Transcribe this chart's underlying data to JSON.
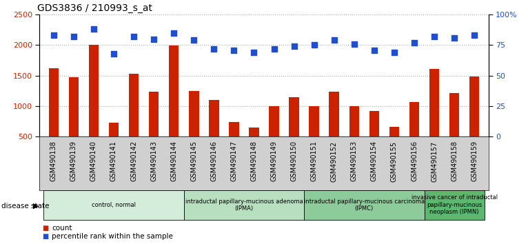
{
  "title": "GDS3836 / 210993_s_at",
  "samples": [
    "GSM490138",
    "GSM490139",
    "GSM490140",
    "GSM490141",
    "GSM490142",
    "GSM490143",
    "GSM490144",
    "GSM490145",
    "GSM490146",
    "GSM490147",
    "GSM490148",
    "GSM490149",
    "GSM490150",
    "GSM490151",
    "GSM490152",
    "GSM490153",
    "GSM490154",
    "GSM490155",
    "GSM490156",
    "GSM490157",
    "GSM490158",
    "GSM490159"
  ],
  "counts": [
    1620,
    1470,
    2000,
    730,
    1530,
    1240,
    1990,
    1250,
    1100,
    740,
    650,
    1000,
    1150,
    1000,
    1240,
    1000,
    920,
    660,
    1070,
    1610,
    1210,
    1490
  ],
  "percentiles": [
    83,
    82,
    88,
    68,
    82,
    80,
    85,
    79,
    72,
    71,
    69,
    72,
    74,
    75,
    79,
    76,
    71,
    69,
    77,
    82,
    81,
    83
  ],
  "ylim_left": [
    500,
    2500
  ],
  "ylim_right": [
    0,
    100
  ],
  "yticks_left": [
    500,
    1000,
    1500,
    2000,
    2500
  ],
  "yticks_right": [
    0,
    25,
    50,
    75,
    100
  ],
  "ytick_labels_right": [
    "0",
    "25",
    "50",
    "75",
    "100%"
  ],
  "bar_color": "#cc2200",
  "dot_color": "#1f4fcf",
  "bar_width": 0.5,
  "dot_size": 28,
  "dot_marker": "s",
  "grid_color": "#aaaaaa",
  "grid_style": "dotted",
  "bg_color": "#ffffff",
  "xtick_bg_color": "#d0d0d0",
  "disease_groups": [
    {
      "label": "control, normal",
      "start": 0,
      "end": 7,
      "color": "#d4edda"
    },
    {
      "label": "intraductal papillary-mucinous adenoma\n(IPMA)",
      "start": 7,
      "end": 13,
      "color": "#b8dfc0"
    },
    {
      "label": "intraductal papillary-mucinous carcinoma\n(IPMC)",
      "start": 13,
      "end": 19,
      "color": "#8dcc9a"
    },
    {
      "label": "invasive cancer of intraductal\npapillary-mucinous\nneoplasm (IPMN)",
      "start": 19,
      "end": 22,
      "color": "#5cb86e"
    }
  ],
  "disease_state_label": "disease state",
  "legend_count_label": "count",
  "legend_pct_label": "percentile rank within the sample",
  "xticklabel_fontsize": 7,
  "yticklabel_fontsize": 8,
  "title_fontsize": 10,
  "tick_label_color_left": "#cc2200",
  "tick_label_color_right": "#1f4fcf"
}
